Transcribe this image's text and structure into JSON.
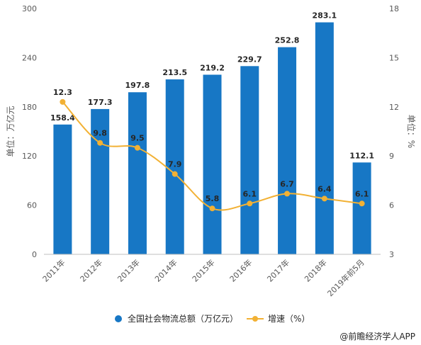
{
  "chart_data": {
    "type": "bar",
    "categories": [
      "2011年",
      "2012年",
      "2013年",
      "2014年",
      "2015年",
      "2016年",
      "2017年",
      "2018年",
      "2019年前5月"
    ],
    "series": [
      {
        "name": "全国社会物流总额（万亿元）",
        "type": "bar",
        "axis": "left",
        "color": "#1777c5",
        "values": [
          158.4,
          177.3,
          197.8,
          213.5,
          219.2,
          229.7,
          252.8,
          283.1,
          112.1
        ],
        "labels": [
          "158.4",
          "177.3",
          "197.8",
          "213.5",
          "219.2",
          "229.7",
          "252.8",
          "283.1",
          "112.1"
        ]
      },
      {
        "name": "增速（%）",
        "type": "line",
        "axis": "right",
        "color": "#f2b134",
        "values": [
          12.3,
          9.8,
          9.5,
          7.9,
          5.8,
          6.1,
          6.7,
          6.4,
          6.1
        ],
        "labels": [
          "12.3",
          "9.8",
          "9.5",
          "7.9",
          "5.8",
          "6.1",
          "6.7",
          "6.4",
          "6.1"
        ]
      }
    ],
    "ylabel_left": "单位：万亿元",
    "ylabel_right": "单位：%",
    "ylim_left": [
      0,
      300
    ],
    "ylim_right": [
      3,
      18
    ],
    "yticks_left": [
      "0",
      "60",
      "120",
      "180",
      "240",
      "300"
    ],
    "yticks_right": [
      "3",
      "6",
      "9",
      "12",
      "15",
      "18"
    ],
    "grid": false,
    "legend_position": "bottom"
  },
  "source": "@前瞻经济学人APP"
}
